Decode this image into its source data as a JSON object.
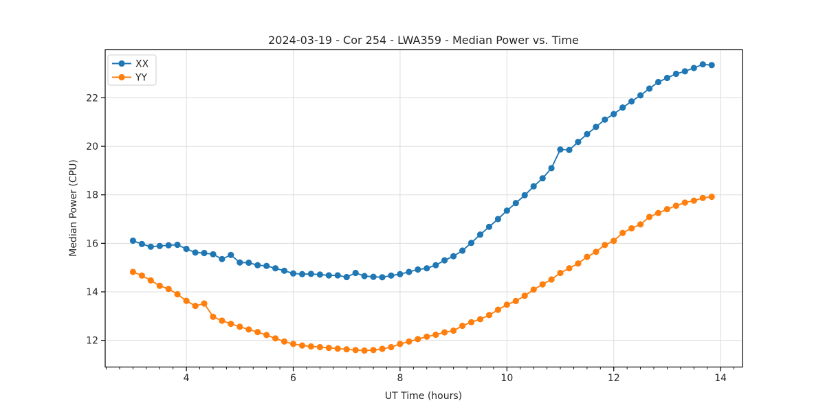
{
  "chart_data": {
    "type": "line",
    "title": "2024-03-19 - Cor 254 - LWA359 - Median Power vs. Time",
    "xlabel": "UT Time (hours)",
    "ylabel": "Median Power (CPU)",
    "xlim": [
      2.48,
      14.41
    ],
    "ylim": [
      10.9,
      23.98
    ],
    "x_ticks": [
      4,
      6,
      8,
      10,
      12,
      14
    ],
    "x_minor_tick_step": 0.25,
    "y_ticks": [
      12,
      14,
      16,
      18,
      20,
      22
    ],
    "grid": true,
    "legend_position": "upper left",
    "x": [
      3.0,
      3.167,
      3.333,
      3.5,
      3.667,
      3.833,
      4.0,
      4.167,
      4.333,
      4.5,
      4.667,
      4.833,
      5.0,
      5.167,
      5.333,
      5.5,
      5.667,
      5.833,
      6.0,
      6.167,
      6.333,
      6.5,
      6.667,
      6.833,
      7.0,
      7.167,
      7.333,
      7.5,
      7.667,
      7.833,
      8.0,
      8.167,
      8.333,
      8.5,
      8.667,
      8.833,
      9.0,
      9.167,
      9.333,
      9.5,
      9.667,
      9.833,
      10.0,
      10.167,
      10.333,
      10.5,
      10.667,
      10.833,
      11.0,
      11.167,
      11.333,
      11.5,
      11.667,
      11.833,
      12.0,
      12.167,
      12.333,
      12.5,
      12.667,
      12.833,
      13.0,
      13.167,
      13.333,
      13.5,
      13.667,
      13.833
    ],
    "series": [
      {
        "name": "XX",
        "color": "#1f77b4",
        "marker": "circle",
        "values": [
          16.11,
          15.97,
          15.86,
          15.89,
          15.92,
          15.94,
          15.77,
          15.62,
          15.6,
          15.55,
          15.35,
          15.52,
          15.21,
          15.2,
          15.1,
          15.07,
          14.97,
          14.87,
          14.76,
          14.73,
          14.74,
          14.71,
          14.68,
          14.68,
          14.61,
          14.78,
          14.65,
          14.62,
          14.6,
          14.67,
          14.73,
          14.82,
          14.92,
          14.97,
          15.1,
          15.3,
          15.47,
          15.7,
          16.02,
          16.36,
          16.68,
          17.0,
          17.35,
          17.66,
          17.98,
          18.35,
          18.68,
          19.1,
          19.87,
          19.85,
          20.18,
          20.5,
          20.8,
          21.1,
          21.33,
          21.6,
          21.85,
          22.1,
          22.38,
          22.65,
          22.82,
          22.99,
          23.09,
          23.23,
          23.38,
          23.35
        ]
      },
      {
        "name": "YY",
        "color": "#ff7f0e",
        "marker": "circle",
        "values": [
          14.82,
          14.67,
          14.47,
          14.25,
          14.12,
          13.9,
          13.63,
          13.42,
          13.52,
          12.97,
          12.81,
          12.68,
          12.56,
          12.45,
          12.34,
          12.22,
          12.08,
          11.95,
          11.85,
          11.79,
          11.75,
          11.72,
          11.69,
          11.66,
          11.63,
          11.6,
          11.58,
          11.6,
          11.65,
          11.72,
          11.85,
          11.95,
          12.05,
          12.15,
          12.23,
          12.33,
          12.4,
          12.6,
          12.75,
          12.87,
          13.04,
          13.26,
          13.47,
          13.62,
          13.84,
          14.09,
          14.31,
          14.51,
          14.78,
          14.97,
          15.17,
          15.44,
          15.65,
          15.93,
          16.1,
          16.43,
          16.62,
          16.78,
          17.09,
          17.25,
          17.41,
          17.55,
          17.68,
          17.76,
          17.87,
          17.92
        ]
      }
    ]
  }
}
